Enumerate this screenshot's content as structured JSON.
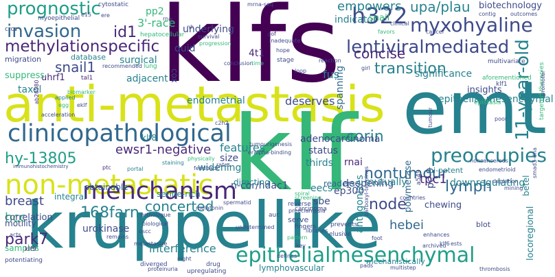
{
  "colors": {
    "background": "#ffffff",
    "palette_note": "viridis",
    "dark_purple": "#440154",
    "purple": "#482878",
    "indigo": "#3e4a89",
    "blue": "#31688e",
    "teal": "#26828e",
    "green_teal": "#1f9e89",
    "green": "#35b779",
    "light_green": "#6ece58",
    "yellow_green": "#b5de2b",
    "yellow": "#d8e219"
  },
  "words": {
    "klfs": "klfs",
    "emt": "emt",
    "klf": "klf",
    "anti_metastasis": "anti-metastasis",
    "kruppellike": "kruppellike",
    "clinicopathological": "clinicopathological",
    "non_metastatic": "non-metastatic",
    "mehchanism": "mehchanism",
    "epithelialmesenchymal": "epithelialmesenchymal",
    "myxohyaline": "myxohyaline",
    "lentiviralmediated": "lentiviralmediated",
    "h322": "h322",
    "invasion": "invasion",
    "prognostic": "prognostic",
    "methylationspecific": "methylationspecific",
    "transition": "transition",
    "preoccupies": "preoccupies",
    "nontumour": "nontumour",
    "year_old": "11-year-old",
    "corin": "corin",
    "concise": "concise",
    "snail1": "snail1",
    "id1": "id1",
    "hy13805": "hy-13805",
    "farn168": "168farn",
    "lymph": "lymph",
    "node": "node",
    "park7": "park7",
    "hcc": "hcc",
    "breast": "breast",
    "concerted": "concerted",
    "tpc1": "tpc1",
    "hebei": "hebei",
    "empowers": "empowers",
    "upa_plau": "upa/plau",
    "biotechnology": "biotechnology",
    "ewsr1_negative": "ewsr1-negative",
    "features": "features",
    "adenocarcinoma": "adenocarcinoma",
    "endometrial": "endometrial",
    "epithelial_mesenchymal": "epithelial-mesenchymal",
    "significance": "significance",
    "deserves": "deserves",
    "fus": "fus",
    "spanning": "spanning",
    "status": "status",
    "size": "size",
    "widening": "widening",
    "rnai": "rnai",
    "deepening": "deepening",
    "mutually": "mutually",
    "ep300": "ep300",
    "thirds": "thirds",
    "readers": "readers",
    "eecs": "eecs",
    "n_cor_hdac1": "n-cor/hdac1",
    "sbe": "sbe",
    "antagonizes": "antagonizes",
    "pc9": "pc-9",
    "polymerase": "polymerase",
    "interference": "interference",
    "urokinase": "urokinase",
    "correlation": "correlation",
    "integral": "integral",
    "obtainable": "obtainable",
    "motility": "motility",
    "samples": "samples",
    "serine_rich": "serine-rich",
    "directing": "directing",
    "downregulating": "downregulating",
    "chewing": "chewing",
    "bi_potent": "bi-potent",
    "taxol": "taxol",
    "adjacent": "adjacent",
    "surgical": "surgical",
    "quid": "quid",
    "uhrf1": "uhrf1",
    "suppress": "suppress",
    "underlying": "underlying",
    "indicator": "indicator",
    "race3": "3'-race",
    "pp2": "pp2",
    "klf8": "klf8",
    "cox": "cox",
    "t41": "4t1",
    "snail": "snail",
    "insights": "insights",
    "betel": "betel",
    "locoregional": "locoregional",
    "lymphovascular": "lymphovascular",
    "mechanistically": "mechanistically",
    "epistasis": "epistasis",
    "klf1": "klf1",
    "aforementioned": "aforementioned",
    "multivariate": "multivariate",
    "contig": "contig",
    "outcomes": "outcomes",
    "targeted_therapies": "targeted-therapies",
    "cytostatic": "cytostatic",
    "hepatocellular": "hepatocellular",
    "myoepithelial": "myoepithelial",
    "crcs": "crcs",
    "migration": "migration",
    "database": "database",
    "recommended": "recommended",
    "lung": "lung",
    "tall": "tal1",
    "biomarker": "biomarker",
    "applied": "applied",
    "eklf": "eklf",
    "acceleration": "acceleration",
    "immunohistochemistry": "immunohistochemistry",
    "ptc": "ptc",
    "portal": "portal",
    "staining": "staining",
    "physically": "physically",
    "feedback": "feedback",
    "rates": "rates",
    "tumourigenesis": "tumourigenesis",
    "eraipha_binding": "eraipha-binding",
    "survival": "survival",
    "progression": "progression",
    "gof": "gof",
    "inadequate": "inadequate",
    "hope": "hope",
    "stage": "stage",
    "conclusion": "conclusion",
    "time": "time",
    "loop": "loop",
    "reaction": "reaction",
    "girl": "girl",
    "favors": "favors",
    "cancer": "cancer",
    "clinical": "clinical",
    "mrna_seq": "mrna-seq",
    "e15": "e15",
    "ere": "ere",
    "nh": "nh",
    "rna": "rna",
    "acts": "acts",
    "potentiating": "potentiating",
    "klf9": "klf9",
    "remains": "remains",
    "orthologue": "orthologue",
    "metastasize": "metastasize",
    "diverged": "diverged",
    "proteinuria": "proteinuria",
    "night": "night",
    "melatonin": "melatonin",
    "drug": "drug",
    "upregulating": "upregulating",
    "undetermined": "undetermined",
    "spermatid": "spermatid",
    "auc": "auc",
    "serve": "serve",
    "defines": "defines",
    "fingers": "fingers",
    "libraries": "libraries",
    "key": "key",
    "pattern": "pattern",
    "elusive": "elusive",
    "prevents": "prevents",
    "pads": "pads",
    "multistep": "multistep",
    "carboxyl_terminus": "carboxyl-terminus",
    "foot": "foot",
    "countries": "countries",
    "a549": "a549",
    "blot": "blot",
    "enhances": "enhances",
    "archived": "archived",
    "klf6": "klf6",
    "ests": "ests",
    "thrombosis": "thrombosis",
    "noncancerous": "noncancerous",
    "endometrioid": "endometrioid",
    "depletion": "depletion",
    "mining": "mining",
    "smad3_dna": "smad3-dna",
    "carcinoma": "carcinoma",
    "preeclampsia": "preeclampsia",
    "reverse": "reverse",
    "screening": "screening",
    "spiral": "spiral",
    "biological": "biological",
    "oscc": "oscc",
    "poor": "poor",
    "promoter": "promoter",
    "tumour": "tumour",
    "ab20580": "ab20580",
    "egg": "egg",
    "c2h2": "c2h2"
  }
}
